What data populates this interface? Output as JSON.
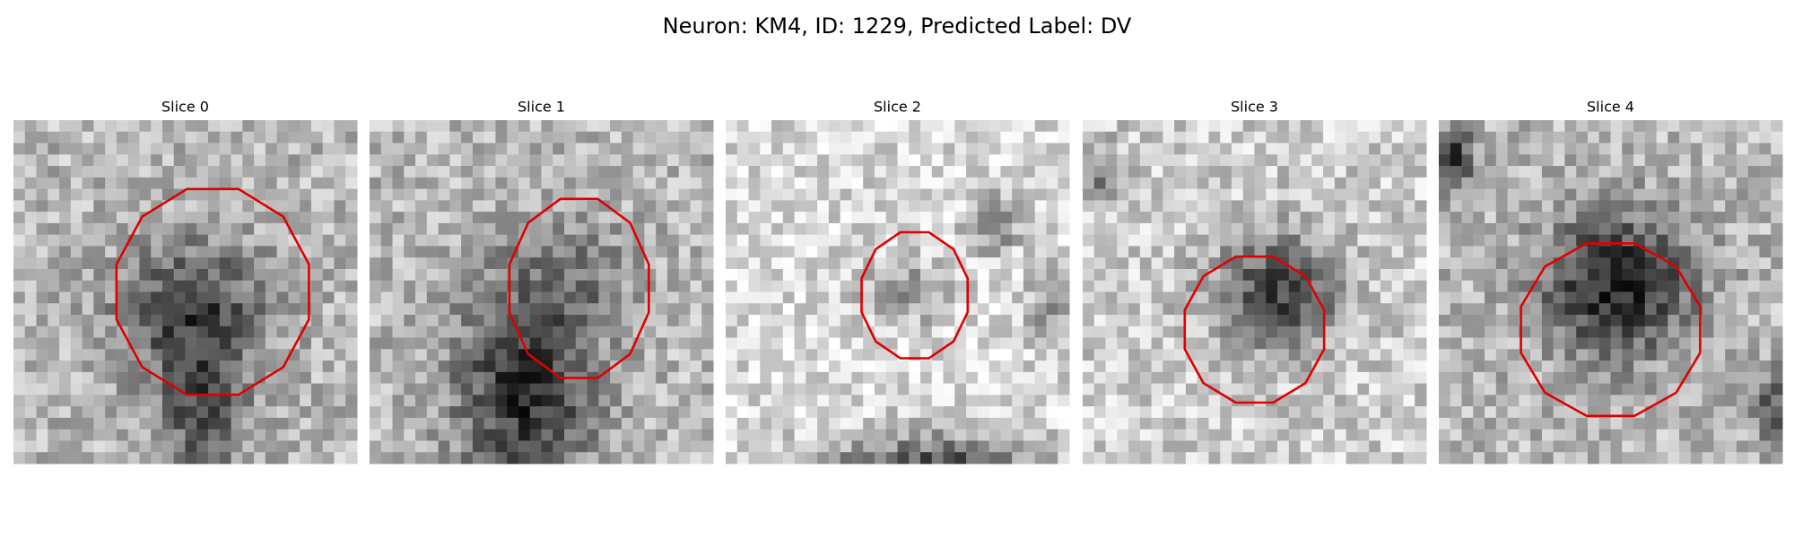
{
  "title": "Neuron: KM4, ID: 1229, Predicted Label: DV",
  "panels": [
    {
      "title": "Slice 0"
    },
    {
      "title": "Slice 1"
    },
    {
      "title": "Slice 2"
    },
    {
      "title": "Slice 3"
    },
    {
      "title": "Slice 4"
    }
  ]
}
